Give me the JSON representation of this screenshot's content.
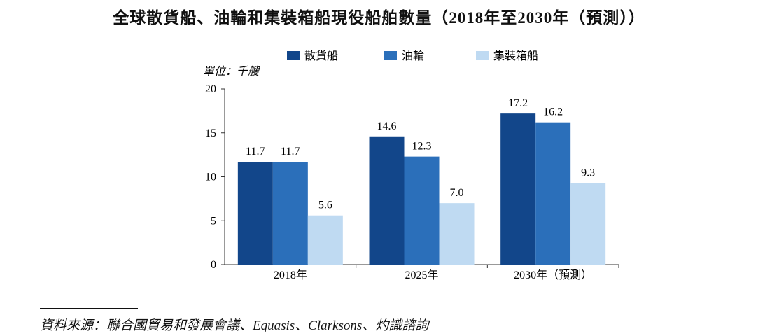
{
  "chart_data": {
    "type": "bar",
    "title": "全球散貨船、油輪和集裝箱船現役船舶數量（2018年至2030年（預測））",
    "unit_label": "單位：千艘",
    "categories": [
      "2018年",
      "2025年",
      "2030年（預測）"
    ],
    "series": [
      {
        "name": "散貨船",
        "values": [
          11.7,
          14.6,
          17.2
        ],
        "color": "#12468a"
      },
      {
        "name": "油輪",
        "values": [
          11.7,
          12.3,
          16.2
        ],
        "color": "#2b6fba"
      },
      {
        "name": "集裝箱船",
        "values": [
          5.6,
          7.0,
          9.3
        ],
        "color": "#bfdaf2"
      }
    ],
    "data_labels": [
      [
        "11.7",
        "14.6",
        "17.2"
      ],
      [
        "11.7",
        "12.3",
        "16.2"
      ],
      [
        "5.6",
        "7.0",
        "9.3"
      ]
    ],
    "ylim": [
      0,
      20
    ],
    "yticks": [
      0,
      5,
      10,
      15,
      20
    ],
    "ytick_labels": [
      "0",
      "5",
      "10",
      "15",
      "20"
    ],
    "legend_position": "top",
    "grid": false
  },
  "source_note": "資料來源：聯合國貿易和發展會議、Equasis、Clarksons、灼識諮詢"
}
